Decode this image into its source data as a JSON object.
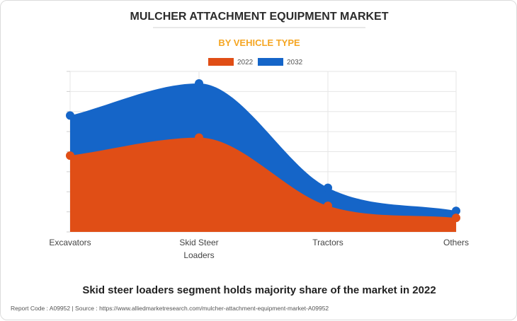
{
  "chart_data": {
    "type": "area",
    "title": "MULCHER ATTACHMENT EQUIPMENT MARKET",
    "subtitle": "BY VEHICLE TYPE",
    "categories": [
      "Excavators",
      "Skid Steer Loaders",
      "Tractors",
      "Others"
    ],
    "series": [
      {
        "name": "2022",
        "values": [
          38,
          47,
          13,
          7
        ],
        "color": "#e04e16"
      },
      {
        "name": "2032",
        "values": [
          58,
          74,
          22,
          10.5
        ],
        "color": "#1565c8"
      }
    ],
    "ylim": [
      0,
      80
    ],
    "grid": true,
    "legend": "top-center",
    "xlabel": "",
    "ylabel": ""
  },
  "colors": {
    "title": "#2b2b2b",
    "subtitle": "#f5a623",
    "axis_text": "#444444",
    "footer_text": "#555555"
  },
  "headline": "Skid steer loaders segment holds majority share of the market in 2022",
  "footer": {
    "text": "Report Code : A09952  |  Source : https://www.alliedmarketresearch.com/mulcher-attachment-equipment-market-A09952"
  }
}
